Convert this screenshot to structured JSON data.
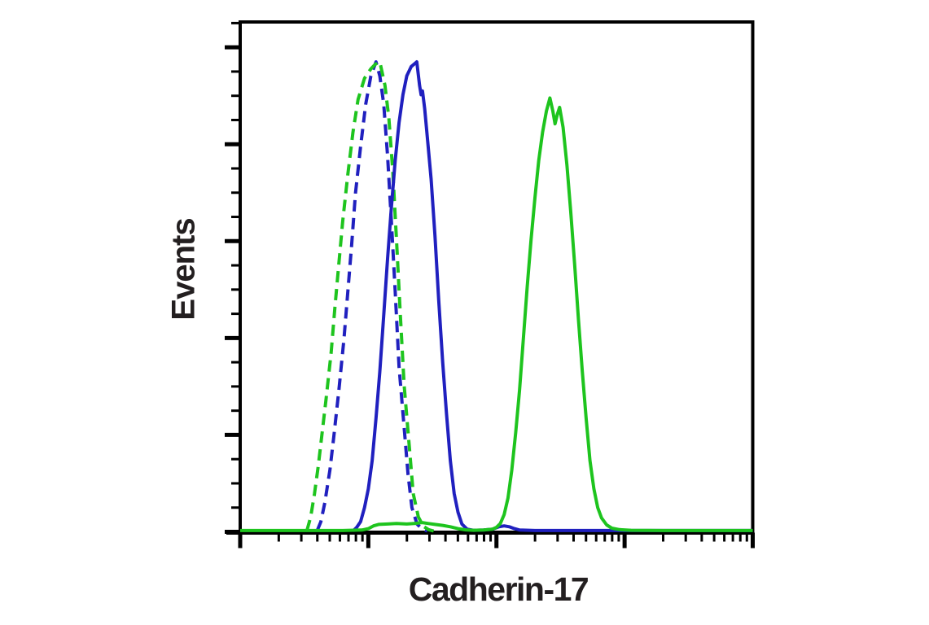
{
  "figure": {
    "background": "#ffffff",
    "text_color": "#231f20",
    "axis_color": "#000000"
  },
  "chart_data": {
    "type": "line",
    "subtype": "flow-cytometry-histogram-overlay",
    "title": "",
    "xlabel": "Cadherin-17",
    "ylabel": "Events",
    "x_scale": "log10",
    "x_range_log_decades": [
      0,
      4
    ],
    "y_range_percent_of_max": [
      0,
      100
    ],
    "grid": false,
    "legend_position": "none",
    "tick_labels_shown": false,
    "layout": {
      "x_major_decades": 5,
      "x_minor_ticks_per_decade": [
        2,
        3,
        4,
        5,
        6,
        7,
        8,
        9
      ],
      "y_total_minor_steps": 21,
      "y_major_every_n_steps": 4,
      "ticks_outside": true
    },
    "series": [
      {
        "name": "blue-dashed-histogram",
        "color": "#2020bf",
        "style": "dashed",
        "peak_x_log": 1.06,
        "peak_y": 100,
        "points": [
          [
            0.6,
            0
          ],
          [
            0.63,
            2
          ],
          [
            0.66,
            6
          ],
          [
            0.7,
            13
          ],
          [
            0.73,
            20
          ],
          [
            0.77,
            30
          ],
          [
            0.81,
            41
          ],
          [
            0.84,
            51
          ],
          [
            0.87,
            61
          ],
          [
            0.9,
            72
          ],
          [
            0.94,
            82
          ],
          [
            0.98,
            91
          ],
          [
            1.02,
            97
          ],
          [
            1.06,
            100
          ],
          [
            1.09,
            97
          ],
          [
            1.12,
            91
          ],
          [
            1.15,
            80
          ],
          [
            1.18,
            66
          ],
          [
            1.21,
            51
          ],
          [
            1.24,
            35
          ],
          [
            1.28,
            22
          ],
          [
            1.31,
            12
          ],
          [
            1.34,
            5
          ],
          [
            1.38,
            1.5
          ],
          [
            1.42,
            0.4
          ],
          [
            1.46,
            0
          ]
        ]
      },
      {
        "name": "green-dashed-histogram",
        "color": "#1ec41e",
        "style": "dashed",
        "peak_x_log": 1.09,
        "peak_y": 100,
        "points": [
          [
            0.52,
            0
          ],
          [
            0.55,
            3
          ],
          [
            0.58,
            8
          ],
          [
            0.61,
            14
          ],
          [
            0.64,
            21
          ],
          [
            0.67,
            28
          ],
          [
            0.71,
            38
          ],
          [
            0.74,
            48
          ],
          [
            0.77,
            57
          ],
          [
            0.8,
            66
          ],
          [
            0.84,
            76
          ],
          [
            0.88,
            85
          ],
          [
            0.92,
            92
          ],
          [
            0.97,
            96.5
          ],
          [
            1.02,
            98.5
          ],
          [
            1.055,
            99.5
          ],
          [
            1.09,
            100
          ],
          [
            1.13,
            95
          ],
          [
            1.16,
            88
          ],
          [
            1.19,
            77
          ],
          [
            1.22,
            62
          ],
          [
            1.25,
            46
          ],
          [
            1.28,
            31
          ],
          [
            1.32,
            18
          ],
          [
            1.35,
            8
          ],
          [
            1.39,
            3
          ],
          [
            1.43,
            1
          ],
          [
            1.47,
            0.3
          ],
          [
            1.51,
            0
          ]
        ]
      },
      {
        "name": "blue-solid-histogram",
        "color": "#2020bf",
        "style": "solid",
        "peak_x_log": 1.378,
        "peak_y": 100,
        "points": [
          [
            0.88,
            0
          ],
          [
            0.91,
            0.8
          ],
          [
            0.94,
            2
          ],
          [
            0.97,
            5
          ],
          [
            1.0,
            9
          ],
          [
            1.03,
            15
          ],
          [
            1.06,
            24
          ],
          [
            1.09,
            34
          ],
          [
            1.12,
            46
          ],
          [
            1.15,
            58
          ],
          [
            1.18,
            69
          ],
          [
            1.21,
            79
          ],
          [
            1.24,
            87
          ],
          [
            1.27,
            93
          ],
          [
            1.3,
            97
          ],
          [
            1.335,
            99
          ],
          [
            1.378,
            100
          ],
          [
            1.4,
            95
          ],
          [
            1.412,
            93
          ],
          [
            1.423,
            93.8
          ],
          [
            1.44,
            90
          ],
          [
            1.46,
            84
          ],
          [
            1.49,
            75
          ],
          [
            1.52,
            63
          ],
          [
            1.55,
            49
          ],
          [
            1.58,
            36
          ],
          [
            1.61,
            25
          ],
          [
            1.64,
            15
          ],
          [
            1.67,
            8
          ],
          [
            1.7,
            4
          ],
          [
            1.73,
            1.5
          ],
          [
            1.77,
            0.4
          ],
          [
            1.82,
            0.15
          ],
          [
            1.9,
            0.2
          ],
          [
            1.97,
            0.4
          ],
          [
            2.02,
            0.9
          ],
          [
            2.06,
            1.1
          ],
          [
            2.1,
            0.9
          ],
          [
            2.14,
            0.5
          ],
          [
            2.18,
            0.2
          ],
          [
            2.3,
            0.1
          ],
          [
            2.6,
            0.1
          ],
          [
            3.0,
            0.1
          ],
          [
            3.5,
            0.1
          ],
          [
            4.0,
            0.1
          ]
        ]
      },
      {
        "name": "green-solid-histogram",
        "color": "#1ec41e",
        "style": "solid",
        "peak_x_log": 2.417,
        "peak_y": 92.3,
        "points": [
          [
            0.0,
            0.1
          ],
          [
            0.5,
            0.1
          ],
          [
            0.8,
            0.1
          ],
          [
            0.95,
            0.2
          ],
          [
            1.0,
            0.5
          ],
          [
            1.04,
            1.1
          ],
          [
            1.08,
            1.4
          ],
          [
            1.15,
            1.5
          ],
          [
            1.22,
            1.6
          ],
          [
            1.3,
            1.5
          ],
          [
            1.36,
            1.6
          ],
          [
            1.42,
            1.8
          ],
          [
            1.47,
            1.6
          ],
          [
            1.52,
            1.4
          ],
          [
            1.58,
            1.2
          ],
          [
            1.64,
            0.9
          ],
          [
            1.7,
            0.5
          ],
          [
            1.76,
            0.25
          ],
          [
            1.82,
            0.15
          ],
          [
            1.9,
            0.2
          ],
          [
            1.97,
            0.4
          ],
          [
            2.0,
            0.8
          ],
          [
            2.03,
            1.6
          ],
          [
            2.06,
            3.5
          ],
          [
            2.09,
            7
          ],
          [
            2.12,
            13
          ],
          [
            2.15,
            21
          ],
          [
            2.18,
            30
          ],
          [
            2.21,
            41
          ],
          [
            2.24,
            52
          ],
          [
            2.27,
            62
          ],
          [
            2.3,
            71
          ],
          [
            2.33,
            79
          ],
          [
            2.36,
            85
          ],
          [
            2.39,
            89.5
          ],
          [
            2.417,
            92.3
          ],
          [
            2.44,
            89.5
          ],
          [
            2.457,
            86.8
          ],
          [
            2.475,
            88.8
          ],
          [
            2.493,
            90.3
          ],
          [
            2.52,
            86
          ],
          [
            2.55,
            78
          ],
          [
            2.58,
            68
          ],
          [
            2.61,
            57
          ],
          [
            2.64,
            45
          ],
          [
            2.67,
            34
          ],
          [
            2.7,
            24
          ],
          [
            2.73,
            15
          ],
          [
            2.76,
            9
          ],
          [
            2.79,
            5
          ],
          [
            2.82,
            2.8
          ],
          [
            2.86,
            1.3
          ],
          [
            2.9,
            0.6
          ],
          [
            2.96,
            0.3
          ],
          [
            3.05,
            0.15
          ],
          [
            3.3,
            0.1
          ],
          [
            3.6,
            0.1
          ],
          [
            4.0,
            0.1
          ]
        ]
      }
    ]
  }
}
